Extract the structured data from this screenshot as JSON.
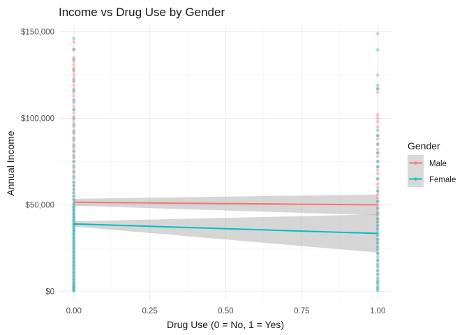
{
  "chart_data": {
    "type": "scatter",
    "title": "Income vs Drug Use by Gender",
    "xlabel": "Drug Use (0 = No, 1 = Yes)",
    "ylabel": "Annual Income",
    "xlim": [
      -0.05,
      1.05
    ],
    "ylim": [
      -5000,
      155000
    ],
    "x_ticks": [
      0,
      0.25,
      0.5,
      0.75,
      1.0
    ],
    "x_tick_labels": [
      "0.00",
      "0.25",
      "0.50",
      "0.75",
      "1.00"
    ],
    "y_ticks": [
      0,
      50000,
      100000,
      150000
    ],
    "y_tick_labels": [
      "$0",
      "$50,000",
      "$100,000",
      "$150,000"
    ],
    "grid": true,
    "legend": {
      "title": "Gender",
      "position": "right"
    },
    "series": [
      {
        "name": "Male",
        "color": "#F8766D",
        "point_alpha": 0.4,
        "points_x0": [
          500,
          2000,
          3500,
          5000,
          7000,
          9000,
          11000,
          13000,
          15000,
          17000,
          19000,
          21000,
          23000,
          25000,
          27000,
          29000,
          31000,
          33000,
          35000,
          37000,
          39000,
          41000,
          43000,
          45000,
          47000,
          49000,
          51000,
          53000,
          55000,
          57000,
          59000,
          61000,
          63000,
          65000,
          67000,
          69000,
          71000,
          73000,
          75000,
          77000,
          79000,
          81000,
          83000,
          85000,
          87000,
          89000,
          91000,
          93000,
          95000,
          97000,
          99000,
          101000,
          103000,
          105000,
          107000,
          109000,
          111000,
          113000,
          115000,
          117000,
          119000,
          121000,
          123000,
          125000,
          127000,
          129000,
          131000,
          133000,
          135000,
          140000,
          144000
        ],
        "points_x1": [
          2000,
          5000,
          7000,
          10000,
          12000,
          15000,
          18000,
          22000,
          25000,
          28000,
          30000,
          33000,
          36000,
          38000,
          40000,
          42000,
          44000,
          46000,
          48000,
          50000,
          52000,
          54000,
          56000,
          58000,
          60000,
          62000,
          65000,
          68000,
          70000,
          72000,
          75000,
          78000,
          80000,
          82000,
          85000,
          88000,
          90000,
          95000,
          98000,
          100000,
          102000,
          115000,
          117000,
          125000,
          149000
        ],
        "fit": {
          "x": [
            0,
            1
          ],
          "y": [
            51500,
            50000
          ],
          "ci_lower": [
            49500,
            44000
          ],
          "ci_upper": [
            53500,
            56000
          ]
        }
      },
      {
        "name": "Female",
        "color": "#00BFC4",
        "point_alpha": 0.4,
        "points_x0": [
          300,
          1000,
          1800,
          2600,
          3500,
          4500,
          5500,
          6500,
          7500,
          8500,
          9500,
          10500,
          11500,
          12500,
          13500,
          14500,
          15500,
          16500,
          17500,
          18500,
          19500,
          20500,
          21500,
          22500,
          23500,
          24500,
          25500,
          26500,
          27500,
          28500,
          29500,
          30500,
          31500,
          32500,
          33500,
          34500,
          35500,
          36500,
          37500,
          38500,
          39500,
          40500,
          41500,
          42500,
          43500,
          44500,
          45500,
          46500,
          47500,
          48500,
          49500,
          51000,
          53000,
          55000,
          57000,
          59000,
          61000,
          63000,
          66000,
          69000,
          72000,
          75000,
          78000,
          81000,
          84000,
          88000,
          92000,
          96000,
          100000,
          105000,
          110000,
          116000,
          122000,
          128000,
          134000,
          139500,
          146000
        ],
        "points_x1": [
          500,
          1500,
          3000,
          4500,
          6000,
          8000,
          10000,
          12000,
          14000,
          16000,
          18000,
          20000,
          22000,
          24000,
          26000,
          28000,
          30000,
          32000,
          34000,
          36000,
          38000,
          40000,
          42000,
          45000,
          48000,
          52000,
          58000,
          65000,
          72000,
          75000,
          80000,
          85000,
          90000,
          93000,
          117000,
          119000,
          139500
        ],
        "fit": {
          "x": [
            0,
            1
          ],
          "y": [
            39000,
            33500
          ],
          "ci_lower": [
            37500,
            22500
          ],
          "ci_upper": [
            40500,
            44500
          ]
        }
      }
    ]
  }
}
